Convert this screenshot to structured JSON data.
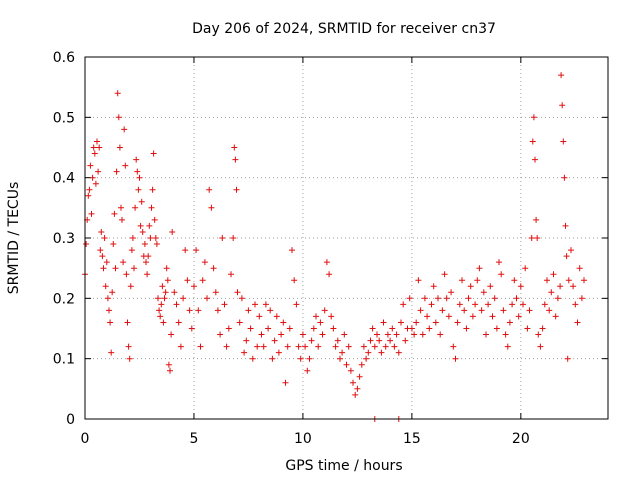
{
  "chart_data": {
    "type": "scatter",
    "title": "Day 206 of 2024, SRMTID for receiver cn37",
    "xlabel": "GPS time / hours",
    "ylabel": "SRMTID / TECUs",
    "xlim": [
      0,
      24
    ],
    "ylim": [
      0,
      0.6
    ],
    "x_ticks": [
      0,
      5,
      10,
      15,
      20
    ],
    "x_tick_labels": [
      "0",
      "5",
      "10",
      "15",
      "20"
    ],
    "y_ticks": [
      0,
      0.1,
      0.2,
      0.3,
      0.4,
      0.5,
      0.6
    ],
    "y_tick_labels": [
      "0",
      "0.1",
      "0.2",
      "0.3",
      "0.4",
      "0.5",
      "0.6"
    ],
    "grid": true,
    "marker": "plus",
    "color": "#e01010",
    "series": [
      {
        "name": "SRMTID",
        "points": [
          [
            0.0,
            0.24
          ],
          [
            0.05,
            0.29
          ],
          [
            0.1,
            0.33
          ],
          [
            0.15,
            0.37
          ],
          [
            0.2,
            0.38
          ],
          [
            0.25,
            0.42
          ],
          [
            0.3,
            0.34
          ],
          [
            0.35,
            0.4
          ],
          [
            0.4,
            0.45
          ],
          [
            0.45,
            0.44
          ],
          [
            0.5,
            0.39
          ],
          [
            0.55,
            0.46
          ],
          [
            0.6,
            0.41
          ],
          [
            0.65,
            0.45
          ],
          [
            0.7,
            0.28
          ],
          [
            0.75,
            0.31
          ],
          [
            0.8,
            0.27
          ],
          [
            0.85,
            0.25
          ],
          [
            0.9,
            0.3
          ],
          [
            0.95,
            0.22
          ],
          [
            1.0,
            0.26
          ],
          [
            1.05,
            0.2
          ],
          [
            1.1,
            0.18
          ],
          [
            1.15,
            0.16
          ],
          [
            1.2,
            0.11
          ],
          [
            1.25,
            0.21
          ],
          [
            1.3,
            0.29
          ],
          [
            1.35,
            0.34
          ],
          [
            1.4,
            0.25
          ],
          [
            1.45,
            0.41
          ],
          [
            1.5,
            0.54
          ],
          [
            1.55,
            0.5
          ],
          [
            1.6,
            0.45
          ],
          [
            1.65,
            0.35
          ],
          [
            1.7,
            0.33
          ],
          [
            1.75,
            0.26
          ],
          [
            1.8,
            0.48
          ],
          [
            1.85,
            0.42
          ],
          [
            1.9,
            0.24
          ],
          [
            1.95,
            0.16
          ],
          [
            2.0,
            0.12
          ],
          [
            2.05,
            0.1
          ],
          [
            2.1,
            0.22
          ],
          [
            2.15,
            0.28
          ],
          [
            2.2,
            0.3
          ],
          [
            2.25,
            0.25
          ],
          [
            2.3,
            0.35
          ],
          [
            2.35,
            0.43
          ],
          [
            2.4,
            0.41
          ],
          [
            2.45,
            0.38
          ],
          [
            2.5,
            0.4
          ],
          [
            2.55,
            0.32
          ],
          [
            2.6,
            0.36
          ],
          [
            2.65,
            0.31
          ],
          [
            2.7,
            0.27
          ],
          [
            2.75,
            0.29
          ],
          [
            2.8,
            0.26
          ],
          [
            2.85,
            0.24
          ],
          [
            2.9,
            0.27
          ],
          [
            2.95,
            0.32
          ],
          [
            3.0,
            0.3
          ],
          [
            3.05,
            0.35
          ],
          [
            3.1,
            0.38
          ],
          [
            3.15,
            0.44
          ],
          [
            3.2,
            0.33
          ],
          [
            3.25,
            0.3
          ],
          [
            3.3,
            0.29
          ],
          [
            3.35,
            0.2
          ],
          [
            3.4,
            0.18
          ],
          [
            3.45,
            0.17
          ],
          [
            3.5,
            0.19
          ],
          [
            3.55,
            0.22
          ],
          [
            3.6,
            0.16
          ],
          [
            3.65,
            0.2
          ],
          [
            3.7,
            0.21
          ],
          [
            3.75,
            0.25
          ],
          [
            3.8,
            0.23
          ],
          [
            3.85,
            0.09
          ],
          [
            3.9,
            0.08
          ],
          [
            3.95,
            0.14
          ],
          [
            4.0,
            0.31
          ],
          [
            4.1,
            0.21
          ],
          [
            4.2,
            0.19
          ],
          [
            4.3,
            0.16
          ],
          [
            4.4,
            0.12
          ],
          [
            4.5,
            0.2
          ],
          [
            4.6,
            0.28
          ],
          [
            4.7,
            0.23
          ],
          [
            4.8,
            0.18
          ],
          [
            4.9,
            0.15
          ],
          [
            5.0,
            0.22
          ],
          [
            5.1,
            0.28
          ],
          [
            5.2,
            0.18
          ],
          [
            5.3,
            0.12
          ],
          [
            5.4,
            0.23
          ],
          [
            5.5,
            0.26
          ],
          [
            5.6,
            0.2
          ],
          [
            5.7,
            0.38
          ],
          [
            5.8,
            0.35
          ],
          [
            5.9,
            0.25
          ],
          [
            6.0,
            0.21
          ],
          [
            6.1,
            0.18
          ],
          [
            6.2,
            0.14
          ],
          [
            6.3,
            0.3
          ],
          [
            6.4,
            0.19
          ],
          [
            6.5,
            0.12
          ],
          [
            6.6,
            0.15
          ],
          [
            6.7,
            0.24
          ],
          [
            6.8,
            0.3
          ],
          [
            6.85,
            0.45
          ],
          [
            6.9,
            0.43
          ],
          [
            6.95,
            0.38
          ],
          [
            7.0,
            0.21
          ],
          [
            7.1,
            0.16
          ],
          [
            7.2,
            0.2
          ],
          [
            7.3,
            0.11
          ],
          [
            7.4,
            0.13
          ],
          [
            7.5,
            0.18
          ],
          [
            7.6,
            0.15
          ],
          [
            7.7,
            0.1
          ],
          [
            7.8,
            0.19
          ],
          [
            7.9,
            0.12
          ],
          [
            8.0,
            0.17
          ],
          [
            8.1,
            0.14
          ],
          [
            8.2,
            0.12
          ],
          [
            8.3,
            0.19
          ],
          [
            8.4,
            0.15
          ],
          [
            8.5,
            0.18
          ],
          [
            8.6,
            0.1
          ],
          [
            8.7,
            0.13
          ],
          [
            8.8,
            0.17
          ],
          [
            8.9,
            0.11
          ],
          [
            9.0,
            0.14
          ],
          [
            9.1,
            0.16
          ],
          [
            9.2,
            0.06
          ],
          [
            9.3,
            0.12
          ],
          [
            9.4,
            0.15
          ],
          [
            9.5,
            0.28
          ],
          [
            9.6,
            0.23
          ],
          [
            9.7,
            0.19
          ],
          [
            9.8,
            0.12
          ],
          [
            9.9,
            0.1
          ],
          [
            10.0,
            0.14
          ],
          [
            10.1,
            0.12
          ],
          [
            10.2,
            0.08
          ],
          [
            10.3,
            0.1
          ],
          [
            10.4,
            0.13
          ],
          [
            10.5,
            0.15
          ],
          [
            10.6,
            0.17
          ],
          [
            10.7,
            0.12
          ],
          [
            10.8,
            0.16
          ],
          [
            10.9,
            0.14
          ],
          [
            11.0,
            0.18
          ],
          [
            11.1,
            0.26
          ],
          [
            11.2,
            0.24
          ],
          [
            11.3,
            0.17
          ],
          [
            11.4,
            0.15
          ],
          [
            11.5,
            0.12
          ],
          [
            11.6,
            0.13
          ],
          [
            11.7,
            0.1
          ],
          [
            11.8,
            0.11
          ],
          [
            11.9,
            0.14
          ],
          [
            12.0,
            0.09
          ],
          [
            12.1,
            0.12
          ],
          [
            12.2,
            0.08
          ],
          [
            12.3,
            0.06
          ],
          [
            12.4,
            0.04
          ],
          [
            12.5,
            0.05
          ],
          [
            12.6,
            0.07
          ],
          [
            12.7,
            0.09
          ],
          [
            12.8,
            0.12
          ],
          [
            12.9,
            0.1
          ],
          [
            13.0,
            0.11
          ],
          [
            13.1,
            0.13
          ],
          [
            13.2,
            0.15
          ],
          [
            13.3,
            0.12
          ],
          [
            13.4,
            0.14
          ],
          [
            13.5,
            0.13
          ],
          [
            13.6,
            0.11
          ],
          [
            13.7,
            0.16
          ],
          [
            13.8,
            0.12
          ],
          [
            13.9,
            0.14
          ],
          [
            14.0,
            0.13
          ],
          [
            14.1,
            0.15
          ],
          [
            14.2,
            0.12
          ],
          [
            14.3,
            0.14
          ],
          [
            14.4,
            0.11
          ],
          [
            14.5,
            0.16
          ],
          [
            14.6,
            0.19
          ],
          [
            14.7,
            0.13
          ],
          [
            14.8,
            0.15
          ],
          [
            14.9,
            0.2
          ],
          [
            15.0,
            0.15
          ],
          [
            15.1,
            0.14
          ],
          [
            15.2,
            0.16
          ],
          [
            15.3,
            0.23
          ],
          [
            15.4,
            0.18
          ],
          [
            15.5,
            0.14
          ],
          [
            15.6,
            0.2
          ],
          [
            15.7,
            0.17
          ],
          [
            15.8,
            0.15
          ],
          [
            15.9,
            0.19
          ],
          [
            16.0,
            0.22
          ],
          [
            16.1,
            0.16
          ],
          [
            16.2,
            0.2
          ],
          [
            16.3,
            0.14
          ],
          [
            16.4,
            0.18
          ],
          [
            16.5,
            0.24
          ],
          [
            16.6,
            0.2
          ],
          [
            16.7,
            0.17
          ],
          [
            16.8,
            0.21
          ],
          [
            16.9,
            0.12
          ],
          [
            17.0,
            0.1
          ],
          [
            17.1,
            0.16
          ],
          [
            17.2,
            0.19
          ],
          [
            17.3,
            0.23
          ],
          [
            17.4,
            0.18
          ],
          [
            17.5,
            0.15
          ],
          [
            17.6,
            0.2
          ],
          [
            17.7,
            0.22
          ],
          [
            17.8,
            0.17
          ],
          [
            17.9,
            0.19
          ],
          [
            18.0,
            0.23
          ],
          [
            18.1,
            0.25
          ],
          [
            18.2,
            0.18
          ],
          [
            18.3,
            0.21
          ],
          [
            18.4,
            0.14
          ],
          [
            18.5,
            0.19
          ],
          [
            18.6,
            0.22
          ],
          [
            18.7,
            0.17
          ],
          [
            18.8,
            0.2
          ],
          [
            18.9,
            0.15
          ],
          [
            19.0,
            0.26
          ],
          [
            19.1,
            0.24
          ],
          [
            19.2,
            0.18
          ],
          [
            19.3,
            0.14
          ],
          [
            19.4,
            0.12
          ],
          [
            19.5,
            0.16
          ],
          [
            19.6,
            0.19
          ],
          [
            19.7,
            0.23
          ],
          [
            19.8,
            0.2
          ],
          [
            19.9,
            0.17
          ],
          [
            20.0,
            0.22
          ],
          [
            20.1,
            0.19
          ],
          [
            20.2,
            0.25
          ],
          [
            20.3,
            0.15
          ],
          [
            20.4,
            0.18
          ],
          [
            20.5,
            0.3
          ],
          [
            20.55,
            0.46
          ],
          [
            20.6,
            0.5
          ],
          [
            20.65,
            0.43
          ],
          [
            20.7,
            0.33
          ],
          [
            20.75,
            0.3
          ],
          [
            20.8,
            0.14
          ],
          [
            20.9,
            0.12
          ],
          [
            21.0,
            0.15
          ],
          [
            21.1,
            0.19
          ],
          [
            21.2,
            0.23
          ],
          [
            21.3,
            0.18
          ],
          [
            21.4,
            0.21
          ],
          [
            21.5,
            0.24
          ],
          [
            21.6,
            0.17
          ],
          [
            21.7,
            0.2
          ],
          [
            21.8,
            0.22
          ],
          [
            21.85,
            0.57
          ],
          [
            21.9,
            0.52
          ],
          [
            21.95,
            0.46
          ],
          [
            22.0,
            0.4
          ],
          [
            22.05,
            0.32
          ],
          [
            22.1,
            0.27
          ],
          [
            22.15,
            0.1
          ],
          [
            22.2,
            0.23
          ],
          [
            22.3,
            0.28
          ],
          [
            22.4,
            0.22
          ],
          [
            22.5,
            0.19
          ],
          [
            22.6,
            0.16
          ],
          [
            22.7,
            0.25
          ],
          [
            22.8,
            0.2
          ],
          [
            22.9,
            0.23
          ],
          [
            13.3,
            0.0
          ],
          [
            14.4,
            0.0
          ]
        ]
      }
    ]
  }
}
